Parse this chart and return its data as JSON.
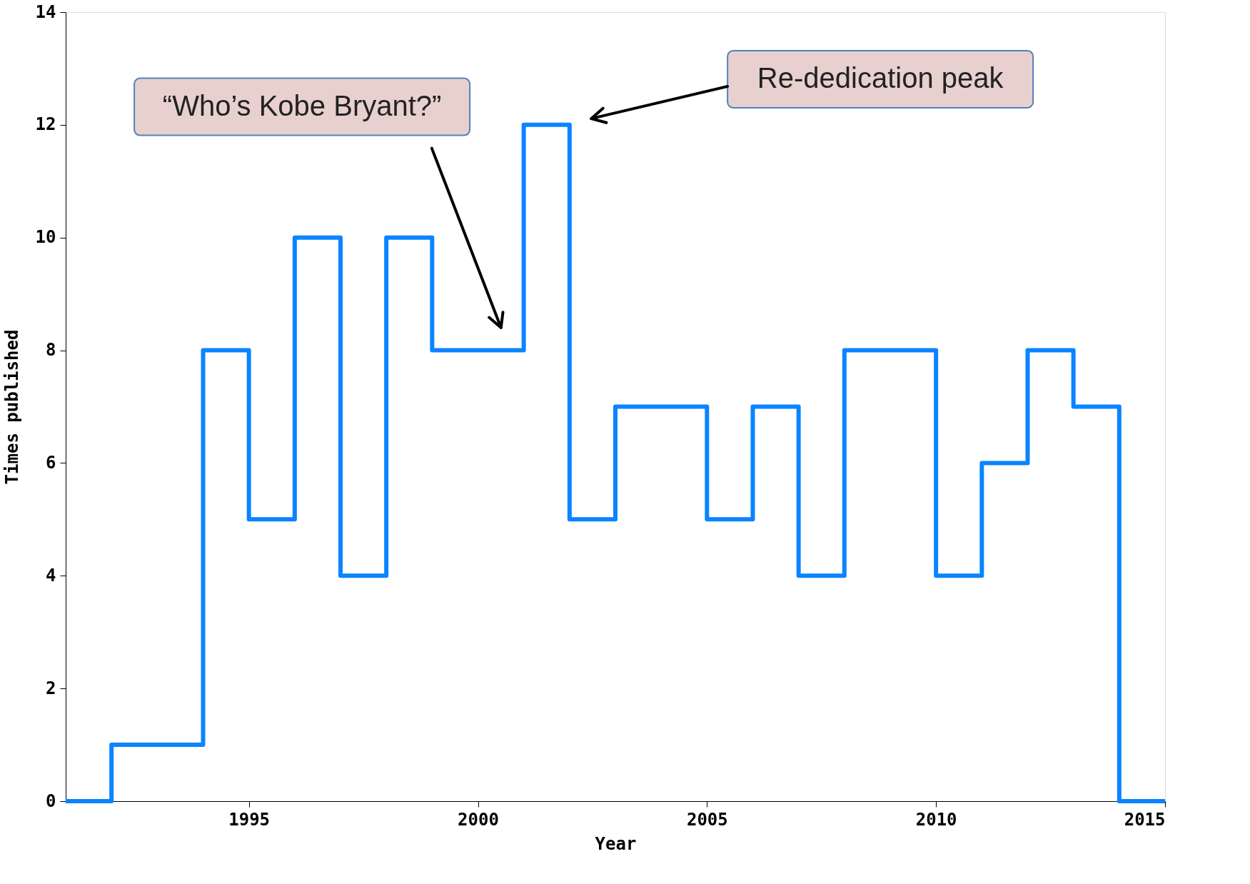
{
  "chart_data": {
    "type": "step",
    "xlabel": "Year",
    "ylabel": "Times published",
    "x": [
      1991,
      1992,
      1993,
      1994,
      1995,
      1996,
      1997,
      1998,
      1999,
      2000,
      2001,
      2002,
      2003,
      2004,
      2005,
      2006,
      2007,
      2008,
      2009,
      2010,
      2011,
      2012,
      2013,
      2014,
      2015
    ],
    "series": [
      {
        "color": "#0a84ff",
        "values": [
          0,
          1,
          1,
          8,
          5,
          10,
          4,
          10,
          8,
          8,
          12,
          5,
          7,
          7,
          5,
          7,
          4,
          8,
          8,
          4,
          6,
          8,
          7,
          0,
          0
        ]
      }
    ],
    "xlim": [
      1991,
      2015
    ],
    "xticks": [
      1995,
      2000,
      2005,
      2010,
      2015
    ],
    "ylim": [
      0,
      14
    ],
    "yticks": [
      0,
      2,
      4,
      6,
      8,
      10,
      12,
      14
    ],
    "grid": false,
    "line_style": "solid",
    "annotations": [
      "“Who’s Kobe Bryant?”",
      "Re-dedication peak"
    ]
  }
}
